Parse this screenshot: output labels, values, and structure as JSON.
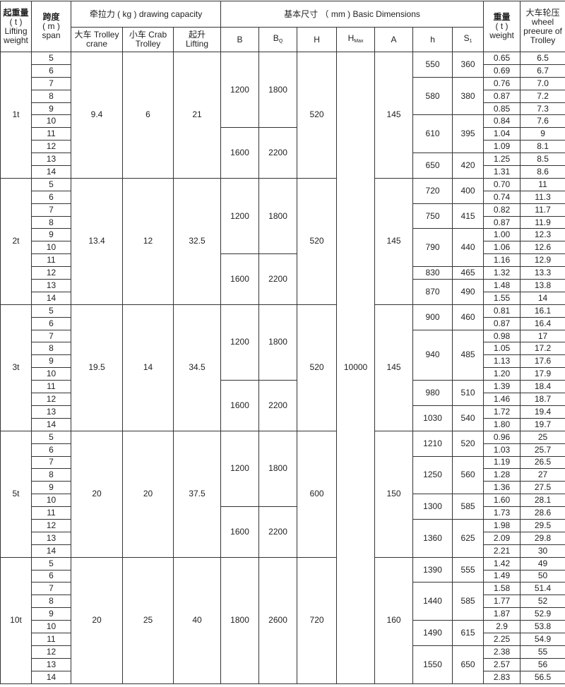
{
  "header": {
    "lifting_weight": [
      "起重量",
      "( t )",
      "Lifting",
      "weight"
    ],
    "span": [
      "跨度",
      "( m )",
      "span"
    ],
    "drawing_capacity": "牵拉力 ( kg )  drawing capacity",
    "trolley_crane": [
      "大车 Trolley",
      "crane"
    ],
    "crab_trolley": [
      "小车 Crab",
      "Trolley"
    ],
    "lifting": [
      "起升",
      "Lifting"
    ],
    "basic_dimensions": "基本尺寸 （ mm ) Basic Dimensions",
    "B": "B",
    "BQ": [
      "B",
      "Q"
    ],
    "H": "H",
    "HMax": [
      "H",
      "Max"
    ],
    "A": "A",
    "h": "h",
    "S1": [
      "S",
      "1"
    ],
    "weight": [
      "重量",
      "( t )",
      "weight"
    ],
    "wheel_pressure": [
      "大车轮压",
      "wheel",
      "preeure of",
      "Trolley"
    ]
  },
  "hmax": "10000",
  "groups": [
    {
      "capacity": "1t",
      "trolley": "9.4",
      "crab": "6",
      "lifting": "21",
      "H": "520",
      "A": "145",
      "b_blocks": [
        {
          "B": "1200",
          "BQ": "1800",
          "span_from": "5",
          "span_to": "10"
        },
        {
          "B": "1600",
          "BQ": "2200",
          "span_from": "11",
          "span_to": "14"
        }
      ],
      "h_blocks": [
        {
          "h": "550",
          "s1": "360",
          "rows": [
            [
              "5",
              "0.65",
              "6.5"
            ],
            [
              "6",
              "0.69",
              "6.7"
            ]
          ]
        },
        {
          "h": "580",
          "s1": "380",
          "rows": [
            [
              "7",
              "0.76",
              "7.0"
            ],
            [
              "8",
              "0.87",
              "7.2"
            ],
            [
              "9",
              "0.85",
              "7.3"
            ]
          ]
        },
        {
          "h": "610",
          "s1": "395",
          "rows": [
            [
              "10",
              "0.84",
              "7.6"
            ],
            [
              "11",
              "1.04",
              "9"
            ],
            [
              "12",
              "1.09",
              "8.1"
            ]
          ]
        },
        {
          "h": "650",
          "s1": "420",
          "rows": [
            [
              "13",
              "1.25",
              "8.5"
            ],
            [
              "14",
              "1.31",
              "8.6"
            ]
          ]
        }
      ]
    },
    {
      "capacity": "2t",
      "trolley": "13.4",
      "crab": "12",
      "lifting": "32.5",
      "H": "520",
      "A": "145",
      "b_blocks": [
        {
          "B": "1200",
          "BQ": "1800",
          "span_from": "5",
          "span_to": "10"
        },
        {
          "B": "1600",
          "BQ": "2200",
          "span_from": "11",
          "span_to": "14"
        }
      ],
      "h_blocks": [
        {
          "h": "720",
          "s1": "400",
          "rows": [
            [
              "5",
              "0.70",
              "11"
            ],
            [
              "6",
              "0.74",
              "11.3"
            ]
          ]
        },
        {
          "h": "750",
          "s1": "415",
          "rows": [
            [
              "7",
              "0.82",
              "11.7"
            ],
            [
              "8",
              "0.87",
              "11.9"
            ]
          ]
        },
        {
          "h": "790",
          "s1": "440",
          "rows": [
            [
              "9",
              "1.00",
              "12.3"
            ],
            [
              "10",
              "1.06",
              "12.6"
            ],
            [
              "11",
              "1.16",
              "12.9"
            ]
          ]
        },
        {
          "h": "830",
          "s1": "465",
          "rows": [
            [
              "12",
              "1.32",
              "13.3"
            ]
          ]
        },
        {
          "h": "870",
          "s1": "490",
          "rows": [
            [
              "13",
              "1.48",
              "13.8"
            ],
            [
              "14",
              "1.55",
              "14"
            ]
          ]
        }
      ]
    },
    {
      "capacity": "3t",
      "trolley": "19.5",
      "crab": "14",
      "lifting": "34.5",
      "H": "520",
      "A": "145",
      "b_blocks": [
        {
          "B": "1200",
          "BQ": "1800",
          "span_from": "5",
          "span_to": "10"
        },
        {
          "B": "1600",
          "BQ": "2200",
          "span_from": "11",
          "span_to": "14"
        }
      ],
      "h_blocks": [
        {
          "h": "900",
          "s1": "460",
          "rows": [
            [
              "5",
              "0.81",
              "16.1"
            ],
            [
              "6",
              "0.87",
              "16.4"
            ]
          ]
        },
        {
          "h": "940",
          "s1": "485",
          "rows": [
            [
              "7",
              "0.98",
              "17"
            ],
            [
              "8",
              "1.05",
              "17.2"
            ],
            [
              "9",
              "1.13",
              "17.6"
            ],
            [
              "10",
              "1.20",
              "17.9"
            ]
          ]
        },
        {
          "h": "980",
          "s1": "510",
          "rows": [
            [
              "11",
              "1.39",
              "18.4"
            ],
            [
              "12",
              "1.46",
              "18.7"
            ]
          ]
        },
        {
          "h": "1030",
          "s1": "540",
          "rows": [
            [
              "13",
              "1.72",
              "19.4"
            ],
            [
              "14",
              "1.80",
              "19.7"
            ]
          ]
        }
      ]
    },
    {
      "capacity": "5t",
      "trolley": "20",
      "crab": "20",
      "lifting": "37.5",
      "H": "600",
      "A": "150",
      "b_blocks": [
        {
          "B": "1200",
          "BQ": "1800",
          "span_from": "5",
          "span_to": "10"
        },
        {
          "B": "1600",
          "BQ": "2200",
          "span_from": "11",
          "span_to": "14"
        }
      ],
      "h_blocks": [
        {
          "h": "1210",
          "s1": "520",
          "rows": [
            [
              "5",
              "0.96",
              "25"
            ],
            [
              "6",
              "1.03",
              "25.7"
            ]
          ]
        },
        {
          "h": "1250",
          "s1": "560",
          "rows": [
            [
              "7",
              "1.19",
              "26.5"
            ],
            [
              "8",
              "1.28",
              "27"
            ],
            [
              "9",
              "1.36",
              "27.5"
            ]
          ]
        },
        {
          "h": "1300",
          "s1": "585",
          "rows": [
            [
              "10",
              "1.60",
              "28.1"
            ],
            [
              "11",
              "1.73",
              "28.6"
            ]
          ]
        },
        {
          "h": "1360",
          "s1": "625",
          "rows": [
            [
              "12",
              "1.98",
              "29.5"
            ],
            [
              "13",
              "2.09",
              "29.8"
            ],
            [
              "14",
              "2.21",
              "30"
            ]
          ]
        }
      ]
    },
    {
      "capacity": "10t",
      "trolley": "20",
      "crab": "25",
      "lifting": "40",
      "H": "720",
      "A": "160",
      "b_blocks": [
        {
          "B": "1800",
          "BQ": "2600",
          "span_from": "5",
          "span_to": "14"
        }
      ],
      "h_blocks": [
        {
          "h": "1390",
          "s1": "555",
          "rows": [
            [
              "5",
              "1.42",
              "49"
            ],
            [
              "6",
              "1.49",
              "50"
            ]
          ]
        },
        {
          "h": "1440",
          "s1": "585",
          "rows": [
            [
              "7",
              "1.58",
              "51.4"
            ],
            [
              "8",
              "1.77",
              "52"
            ],
            [
              "9",
              "1.87",
              "52.9"
            ]
          ]
        },
        {
          "h": "1490",
          "s1": "615",
          "rows": [
            [
              "10",
              "2.9",
              "53.8"
            ],
            [
              "11",
              "2.25",
              "54.9"
            ]
          ]
        },
        {
          "h": "1550",
          "s1": "650",
          "rows": [
            [
              "12",
              "2.38",
              "55"
            ],
            [
              "13",
              "2.57",
              "56"
            ],
            [
              "14",
              "2.83",
              "56.5"
            ]
          ]
        }
      ]
    }
  ]
}
